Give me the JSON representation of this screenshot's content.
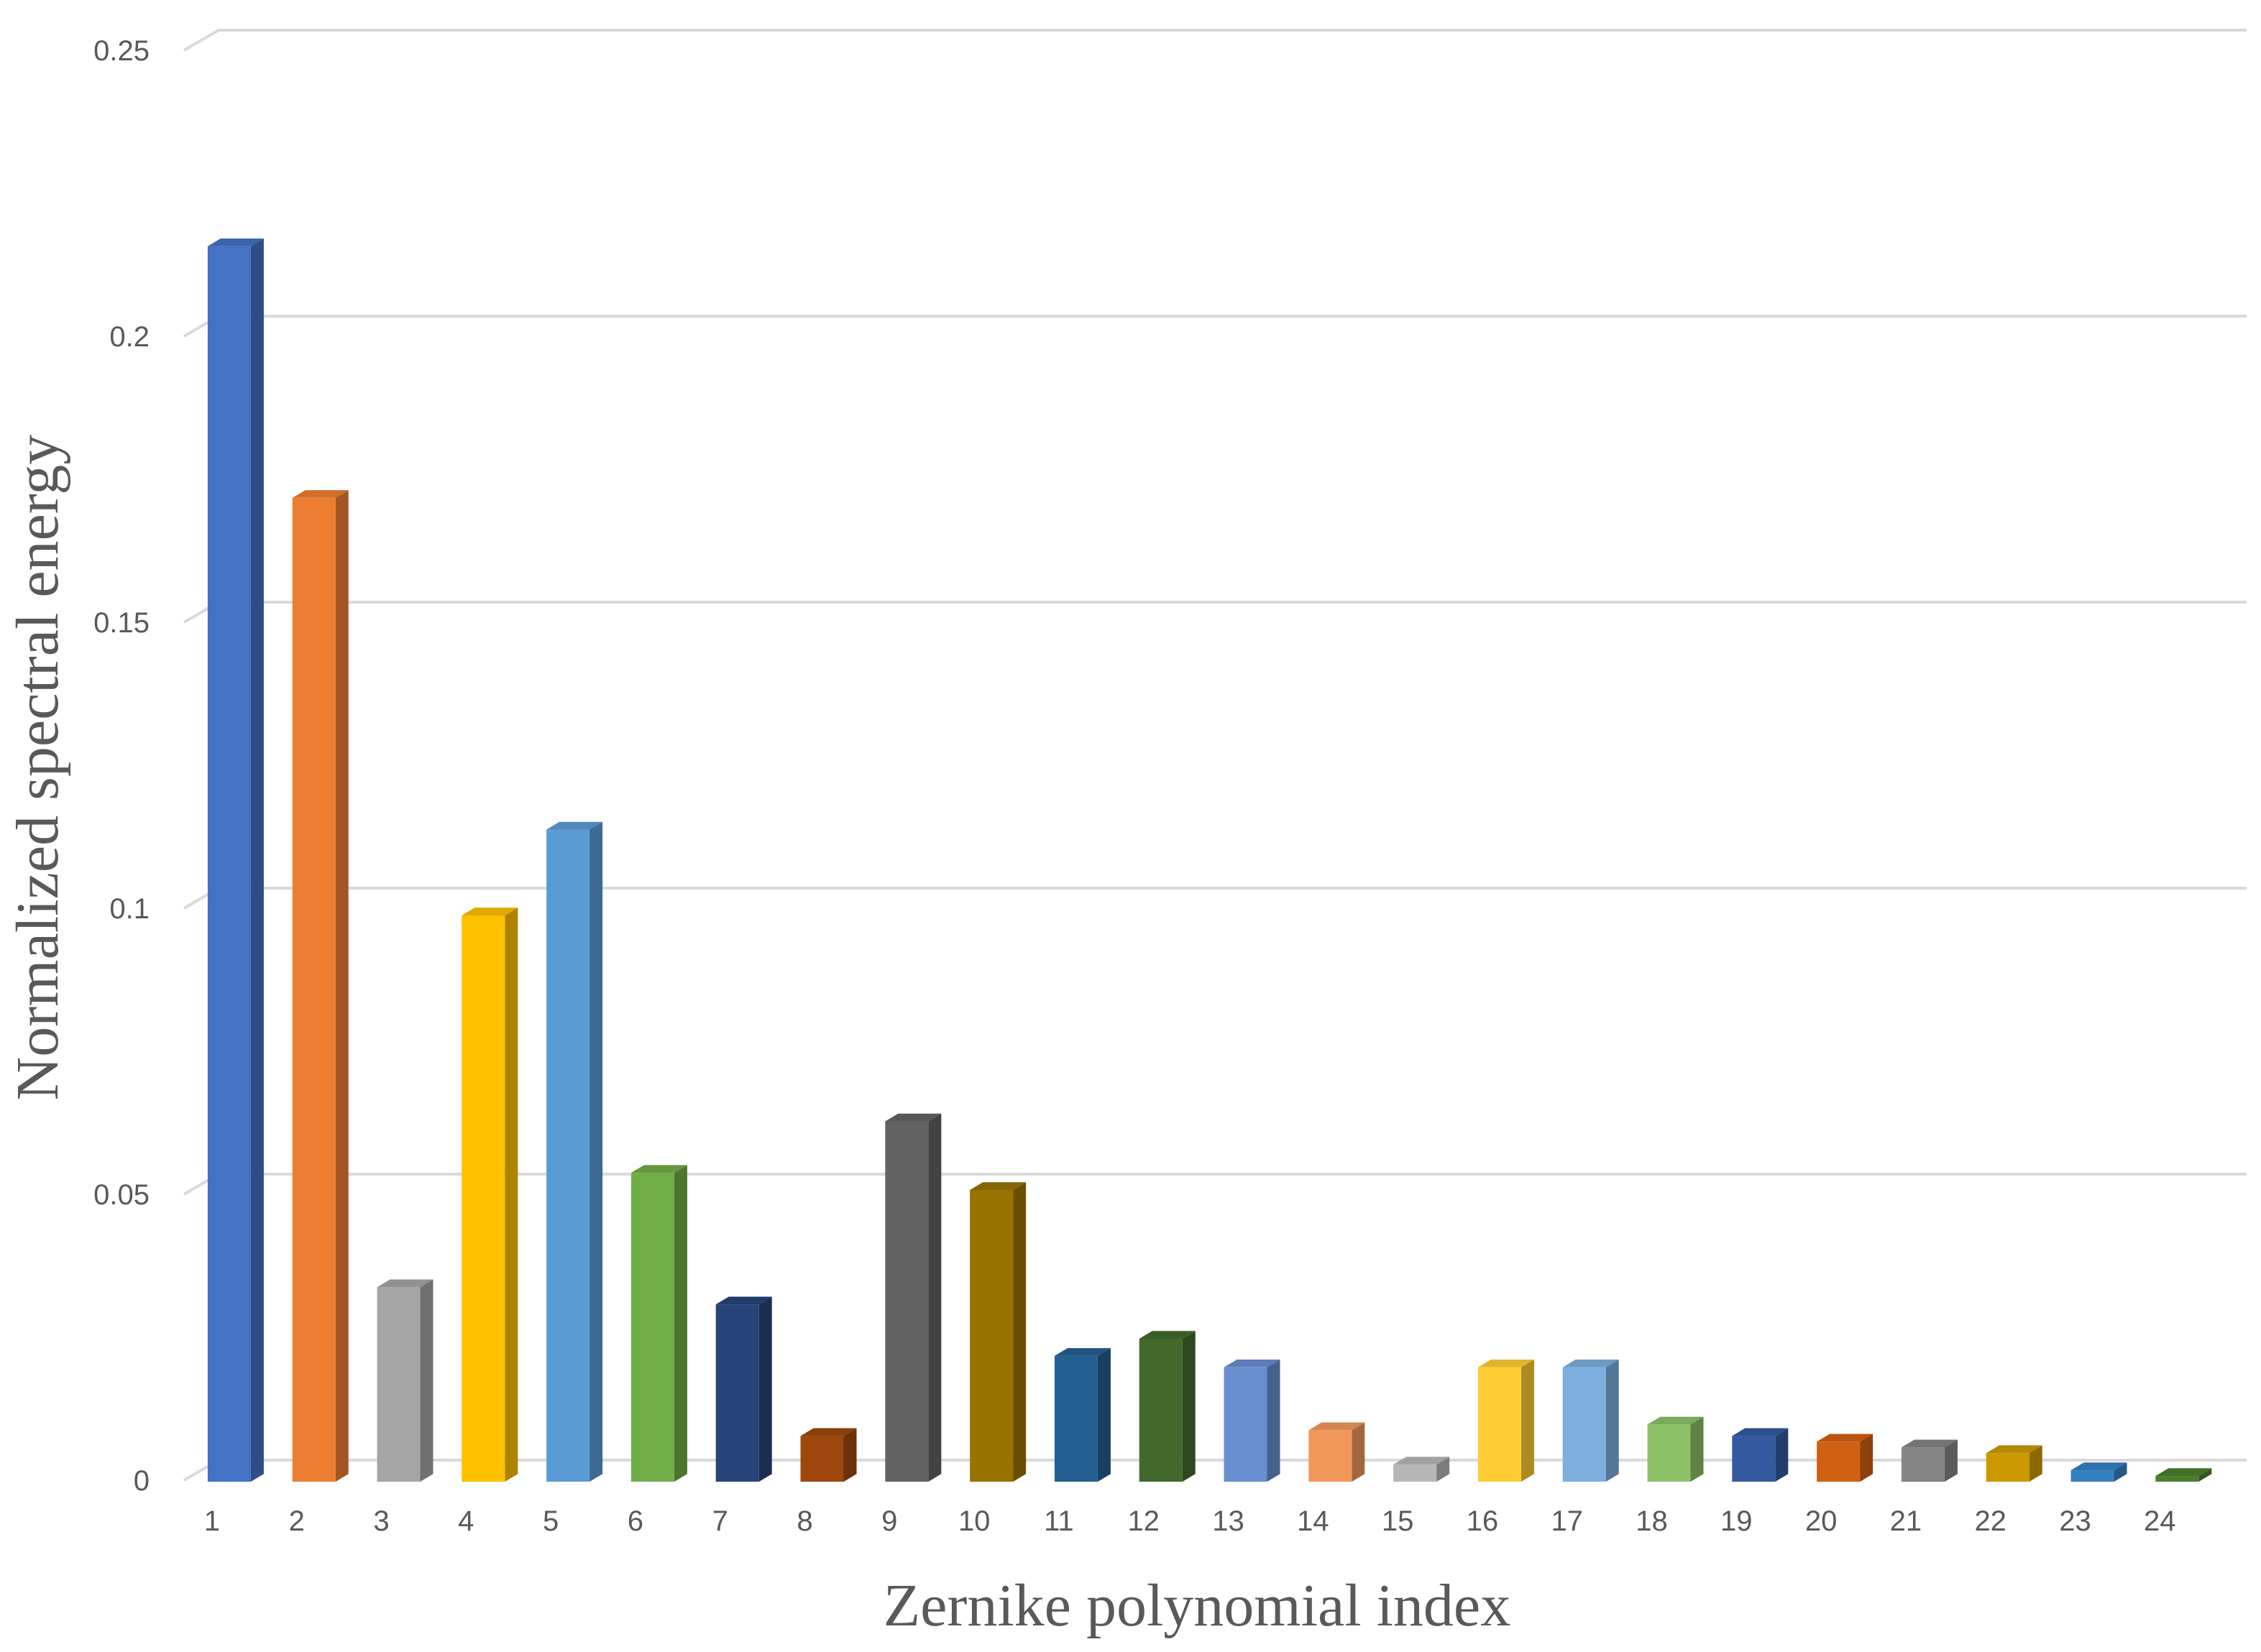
{
  "chart_data": {
    "type": "bar",
    "style": "3d-column",
    "title": "",
    "xlabel": "Zernike polynomial index",
    "ylabel": "Normalized spectral energy",
    "ylim": [
      0,
      0.25
    ],
    "yticks": [
      0,
      0.05,
      0.1,
      0.15,
      0.2,
      0.25
    ],
    "ytick_labels": [
      "0",
      "0.05",
      "0.1",
      "0.15",
      "0.2",
      "0.25"
    ],
    "grid": true,
    "legend": "none",
    "categories": [
      "1",
      "2",
      "3",
      "4",
      "5",
      "6",
      "7",
      "8",
      "9",
      "10",
      "11",
      "12",
      "13",
      "14",
      "15",
      "16",
      "17",
      "18",
      "19",
      "20",
      "21",
      "22",
      "23",
      "24"
    ],
    "values": [
      0.216,
      0.172,
      0.034,
      0.099,
      0.114,
      0.054,
      0.031,
      0.008,
      0.063,
      0.051,
      0.022,
      0.025,
      0.02,
      0.009,
      0.003,
      0.02,
      0.02,
      0.01,
      0.008,
      0.007,
      0.006,
      0.005,
      0.002,
      0.001
    ],
    "colors": [
      "#4472C4",
      "#ED7D31",
      "#A5A5A5",
      "#FFC000",
      "#5B9BD5",
      "#70AD47",
      "#264478",
      "#9E480E",
      "#636363",
      "#997300",
      "#255E91",
      "#43682B",
      "#698ED0",
      "#F1975A",
      "#B7B7B7",
      "#FFCD33",
      "#7CAFDD",
      "#8CC168",
      "#335AA1",
      "#D26012",
      "#848484",
      "#CC9A00",
      "#3580C2",
      "#4C7F2D"
    ]
  }
}
